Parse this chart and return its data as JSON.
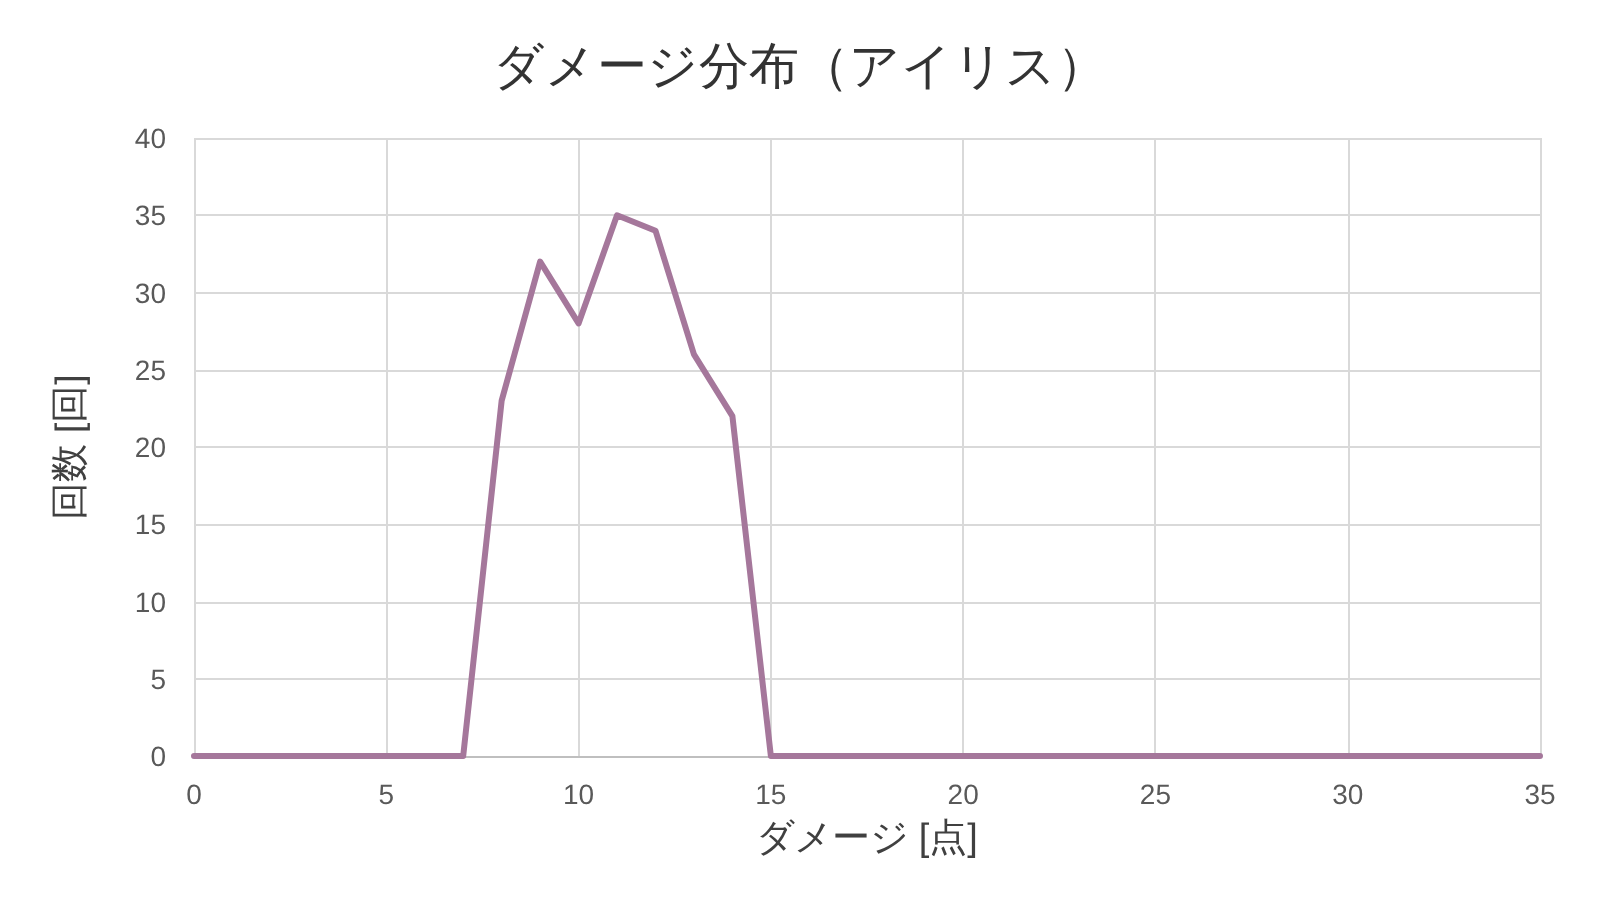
{
  "chart_data": {
    "type": "line",
    "title": "ダメージ分布（アイリス）",
    "xlabel": "ダメージ [点]",
    "ylabel": "回数 [回]",
    "x": [
      0,
      1,
      2,
      3,
      4,
      5,
      6,
      7,
      8,
      9,
      10,
      11,
      12,
      13,
      14,
      15,
      16,
      17,
      18,
      19,
      20,
      21,
      22,
      23,
      24,
      25,
      26,
      27,
      28,
      29,
      30,
      31,
      32,
      33,
      34,
      35
    ],
    "series": [
      {
        "color": "#a5779b",
        "values": [
          0,
          0,
          0,
          0,
          0,
          0,
          0,
          0,
          23,
          32,
          28,
          35,
          34,
          26,
          22,
          0,
          0,
          0,
          0,
          0,
          0,
          0,
          0,
          0,
          0,
          0,
          0,
          0,
          0,
          0,
          0,
          0,
          0,
          0,
          0,
          0
        ]
      }
    ],
    "xlim": [
      0,
      35
    ],
    "xticks": [
      0,
      5,
      10,
      15,
      20,
      25,
      30,
      35
    ],
    "ylim": [
      0,
      40
    ],
    "yticks": [
      0,
      5,
      10,
      15,
      20,
      25,
      30,
      35,
      40
    ],
    "grid": true,
    "marker": "none",
    "line_style": "solid"
  }
}
